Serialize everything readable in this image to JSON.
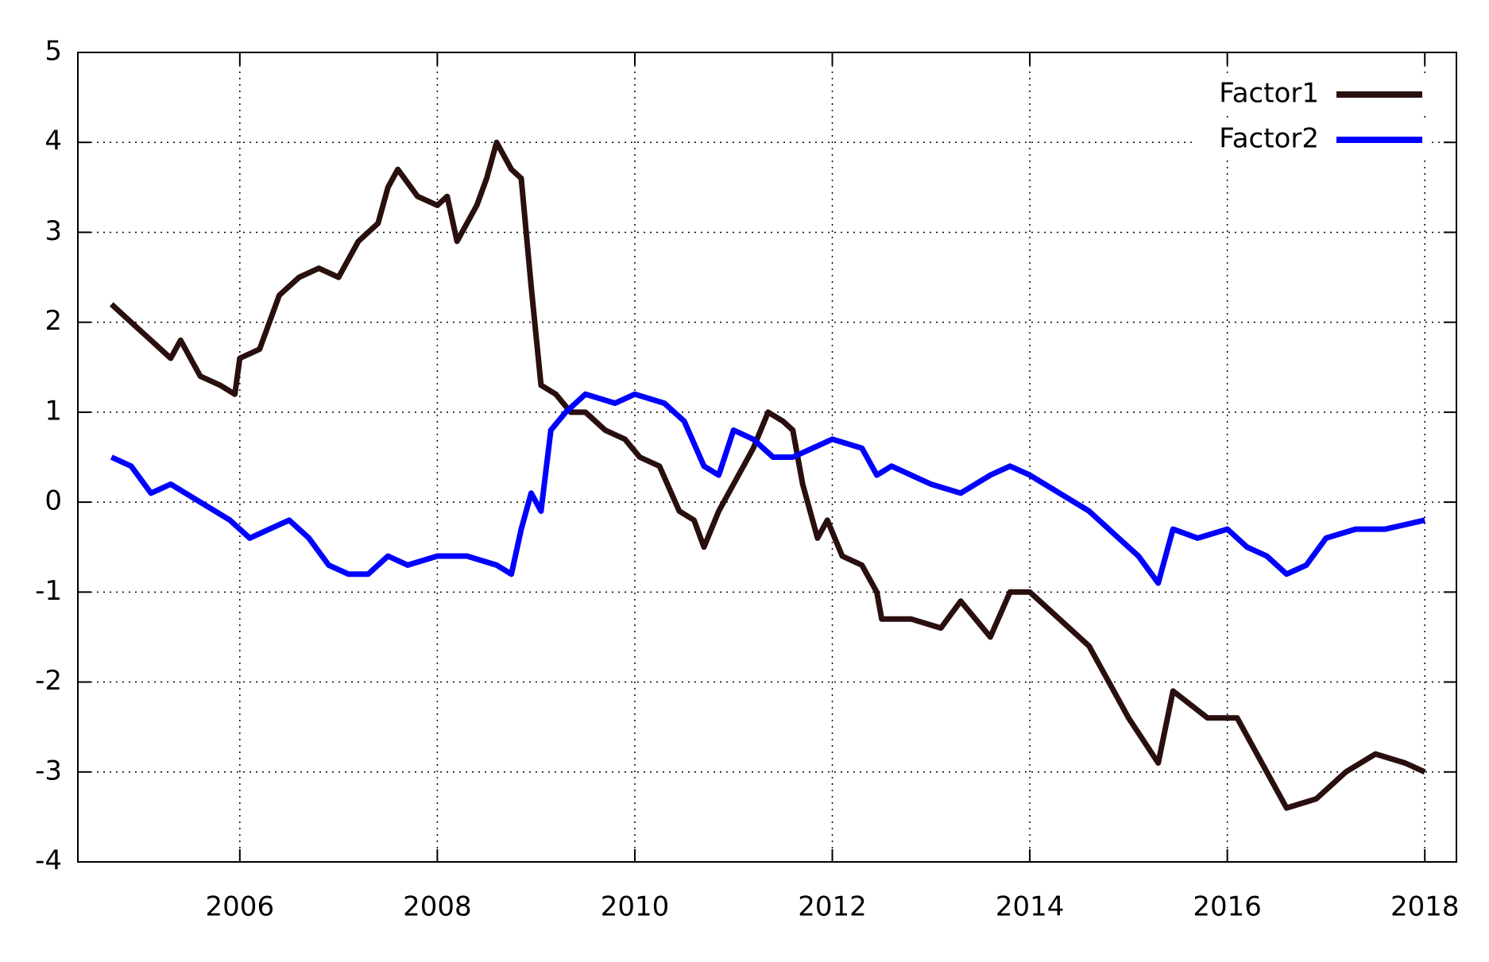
{
  "chart_data": {
    "type": "line",
    "xlim": [
      2004.36,
      2018.32
    ],
    "xticks": [
      2006,
      2008,
      2010,
      2012,
      2014,
      2016,
      2018
    ],
    "ylim": [
      -4,
      5
    ],
    "yticks": [
      -4,
      -3,
      -2,
      -1,
      0,
      1,
      2,
      3,
      4,
      5
    ],
    "grid": true,
    "legend": "top-right",
    "series": [
      {
        "name": "Factor1",
        "color": "#2a0f0f",
        "x": [
          2004.7,
          2004.9,
          2005.1,
          2005.3,
          2005.4,
          2005.6,
          2005.8,
          2005.95,
          2006.0,
          2006.2,
          2006.4,
          2006.6,
          2006.8,
          2007.0,
          2007.2,
          2007.4,
          2007.5,
          2007.6,
          2007.8,
          2008.0,
          2008.1,
          2008.2,
          2008.4,
          2008.5,
          2008.6,
          2008.75,
          2008.85,
          2008.95,
          2009.05,
          2009.2,
          2009.35,
          2009.5,
          2009.7,
          2009.9,
          2010.05,
          2010.25,
          2010.45,
          2010.6,
          2010.7,
          2010.85,
          2011.0,
          2011.2,
          2011.35,
          2011.5,
          2011.6,
          2011.7,
          2011.85,
          2011.95,
          2012.1,
          2012.3,
          2012.45,
          2012.5,
          2012.8,
          2013.1,
          2013.3,
          2013.6,
          2013.8,
          2014.0,
          2014.2,
          2014.6,
          2015.0,
          2015.3,
          2015.45,
          2015.8,
          2016.1,
          2016.3,
          2016.6,
          2016.9,
          2017.2,
          2017.5,
          2017.8,
          2018.0
        ],
        "values": [
          2.2,
          2.0,
          1.8,
          1.6,
          1.8,
          1.4,
          1.3,
          1.2,
          1.6,
          1.7,
          2.3,
          2.5,
          2.6,
          2.5,
          2.9,
          3.1,
          3.5,
          3.7,
          3.4,
          3.3,
          3.4,
          2.9,
          3.3,
          3.6,
          4.0,
          3.7,
          3.6,
          2.4,
          1.3,
          1.2,
          1.0,
          1.0,
          0.8,
          0.7,
          0.5,
          0.4,
          -0.1,
          -0.2,
          -0.5,
          -0.1,
          0.2,
          0.6,
          1.0,
          0.9,
          0.8,
          0.2,
          -0.4,
          -0.2,
          -0.6,
          -0.7,
          -1.0,
          -1.3,
          -1.3,
          -1.4,
          -1.1,
          -1.5,
          -1.0,
          -1.0,
          -1.2,
          -1.6,
          -2.4,
          -2.9,
          -2.1,
          -2.4,
          -2.4,
          -2.8,
          -3.4,
          -3.3,
          -3.0,
          -2.8,
          -2.9,
          -3.0
        ]
      },
      {
        "name": "Factor2",
        "color": "#0000ff",
        "x": [
          2004.7,
          2004.9,
          2005.1,
          2005.3,
          2005.6,
          2005.9,
          2006.1,
          2006.3,
          2006.5,
          2006.7,
          2006.9,
          2007.1,
          2007.3,
          2007.5,
          2007.7,
          2008.0,
          2008.3,
          2008.6,
          2008.75,
          2008.85,
          2008.95,
          2009.05,
          2009.15,
          2009.3,
          2009.5,
          2009.8,
          2010.0,
          2010.3,
          2010.5,
          2010.7,
          2010.85,
          2011.0,
          2011.2,
          2011.4,
          2011.6,
          2011.8,
          2012.0,
          2012.3,
          2012.45,
          2012.6,
          2013.0,
          2013.3,
          2013.6,
          2013.8,
          2014.0,
          2014.3,
          2014.6,
          2014.9,
          2015.1,
          2015.3,
          2015.45,
          2015.7,
          2016.0,
          2016.2,
          2016.4,
          2016.6,
          2016.8,
          2017.0,
          2017.3,
          2017.6,
          2018.0
        ],
        "values": [
          0.5,
          0.4,
          0.1,
          0.2,
          0.0,
          -0.2,
          -0.4,
          -0.3,
          -0.2,
          -0.4,
          -0.7,
          -0.8,
          -0.8,
          -0.6,
          -0.7,
          -0.6,
          -0.6,
          -0.7,
          -0.8,
          -0.3,
          0.1,
          -0.1,
          0.8,
          1.0,
          1.2,
          1.1,
          1.2,
          1.1,
          0.9,
          0.4,
          0.3,
          0.8,
          0.7,
          0.5,
          0.5,
          0.6,
          0.7,
          0.6,
          0.3,
          0.4,
          0.2,
          0.1,
          0.3,
          0.4,
          0.3,
          0.1,
          -0.1,
          -0.4,
          -0.6,
          -0.9,
          -0.3,
          -0.4,
          -0.3,
          -0.5,
          -0.6,
          -0.8,
          -0.7,
          -0.4,
          -0.3,
          -0.3,
          -0.2
        ]
      }
    ]
  }
}
